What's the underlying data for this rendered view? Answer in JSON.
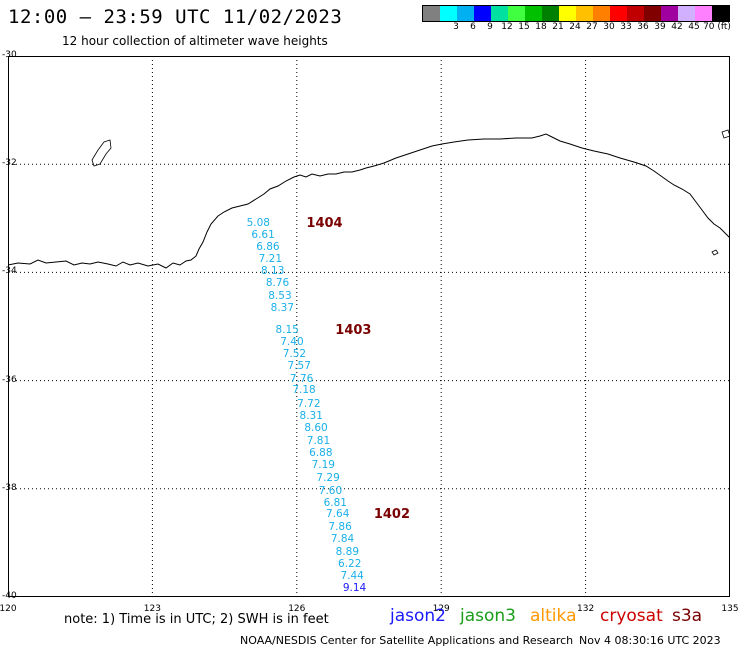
{
  "header": {
    "title": "12:00 — 23:59 UTC 11/02/2023",
    "subtitle": "12 hour collection of altimeter wave heights"
  },
  "colorbar": {
    "colors": [
      "#808080",
      "#00ffff",
      "#00b0f0",
      "#0000ff",
      "#00e0a0",
      "#40ff40",
      "#00c000",
      "#008000",
      "#ffff00",
      "#ffc000",
      "#ff8000",
      "#ff0000",
      "#c00000",
      "#800000",
      "#a000a0",
      "#d0b0ff",
      "#ff80ff",
      "#000000"
    ],
    "labels": [
      "3",
      "6",
      "9",
      "12",
      "15",
      "18",
      "21",
      "24",
      "27",
      "30",
      "33",
      "36",
      "39",
      "42",
      "45",
      "70 (ft)"
    ]
  },
  "axes": {
    "lat_labels": [
      "-30",
      "-32",
      "-34",
      "-36",
      "-38",
      "-40"
    ],
    "lon_labels": [
      "120",
      "123",
      "126",
      "129",
      "132",
      "135"
    ],
    "lat_range": [
      -40,
      -30
    ],
    "lon_range": [
      120,
      135
    ],
    "grid": "dotted"
  },
  "wave_heights": [
    {
      "value": "5.08",
      "lat": -33.1,
      "lon": 125.2
    },
    {
      "value": "6.61",
      "lat": -33.32,
      "lon": 125.3
    },
    {
      "value": "6.86",
      "lat": -33.55,
      "lon": 125.4
    },
    {
      "value": "7.21",
      "lat": -33.77,
      "lon": 125.45
    },
    {
      "value": "8.13",
      "lat": -34.0,
      "lon": 125.5
    },
    {
      "value": "8.76",
      "lat": -34.22,
      "lon": 125.6
    },
    {
      "value": "8.53",
      "lat": -34.45,
      "lon": 125.65
    },
    {
      "value": "8.37",
      "lat": -34.67,
      "lon": 125.7
    },
    {
      "value": "8.15",
      "lat": -35.08,
      "lon": 125.8
    },
    {
      "value": "7.40",
      "lat": -35.3,
      "lon": 125.9
    },
    {
      "value": "7.52",
      "lat": -35.53,
      "lon": 125.95
    },
    {
      "value": "7.57",
      "lat": -35.75,
      "lon": 126.05
    },
    {
      "value": "7.76",
      "lat": -35.98,
      "lon": 126.1
    },
    {
      "value": "7.18",
      "lat": -36.2,
      "lon": 126.15
    },
    {
      "value": "7.72",
      "lat": -36.45,
      "lon": 126.25
    },
    {
      "value": "8.31",
      "lat": -36.68,
      "lon": 126.3
    },
    {
      "value": "8.60",
      "lat": -36.9,
      "lon": 126.4
    },
    {
      "value": "7.81",
      "lat": -37.13,
      "lon": 126.45
    },
    {
      "value": "6.88",
      "lat": -37.35,
      "lon": 126.5
    },
    {
      "value": "7.19",
      "lat": -37.58,
      "lon": 126.55
    },
    {
      "value": "7.29",
      "lat": -37.82,
      "lon": 126.65
    },
    {
      "value": "7.60",
      "lat": -38.05,
      "lon": 126.7
    },
    {
      "value": "6.81",
      "lat": -38.28,
      "lon": 126.8
    },
    {
      "value": "7.64",
      "lat": -38.48,
      "lon": 126.85
    },
    {
      "value": "7.86",
      "lat": -38.72,
      "lon": 126.9
    },
    {
      "value": "7.84",
      "lat": -38.95,
      "lon": 126.95
    },
    {
      "value": "8.89",
      "lat": -39.18,
      "lon": 127.05
    },
    {
      "value": "6.22",
      "lat": -39.4,
      "lon": 127.1
    },
    {
      "value": "7.44",
      "lat": -39.63,
      "lon": 127.15
    },
    {
      "value": "9.14",
      "lat": -39.85,
      "lon": 127.2
    }
  ],
  "pass_labels": [
    {
      "text": "1404",
      "lat": -33.1,
      "lon": 126.2
    },
    {
      "text": "1403",
      "lat": -35.08,
      "lon": 126.8
    },
    {
      "text": "1402",
      "lat": -38.48,
      "lon": 127.6
    }
  ],
  "footer": {
    "note": "note:  1) Time is in UTC;  2) SWH is in feet",
    "satellites": [
      {
        "name": "jason2",
        "color": "#1a1aff"
      },
      {
        "name": "jason3",
        "color": "#1a9e1a"
      },
      {
        "name": "altika",
        "color": "#ff9900"
      },
      {
        "name": "cryosat",
        "color": "#cc0000"
      },
      {
        "name": "s3a",
        "color": "#7a0000"
      }
    ],
    "credit": "NOAA/NESDIS Center for Satellite Applications and Research",
    "timestamp": "Nov  4 08:30:16 UTC 2023"
  }
}
